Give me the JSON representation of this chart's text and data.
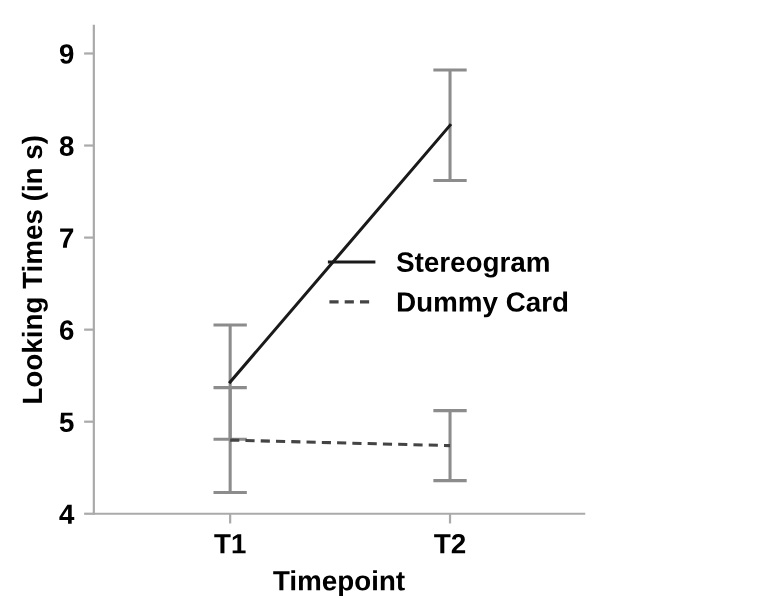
{
  "chart_data": {
    "type": "line",
    "xlabel": "Timepoint",
    "ylabel": "Looking Times (in s)",
    "categories": [
      "T1",
      "T2"
    ],
    "series": [
      {
        "name": "Stereogram",
        "color": "#1a1a1a",
        "line_style": "solid",
        "values": [
          5.43,
          8.22
        ],
        "errors": [
          0.62,
          0.6
        ]
      },
      {
        "name": "Dummy Card",
        "color": "#444444",
        "line_style": "dashed",
        "values": [
          4.8,
          4.74
        ],
        "errors": [
          0.57,
          0.38
        ]
      }
    ],
    "ylim": [
      4,
      9.3
    ],
    "yticks": [
      4,
      5,
      6,
      7,
      8,
      9
    ],
    "grid": false,
    "legend": "right",
    "marker": "none"
  }
}
